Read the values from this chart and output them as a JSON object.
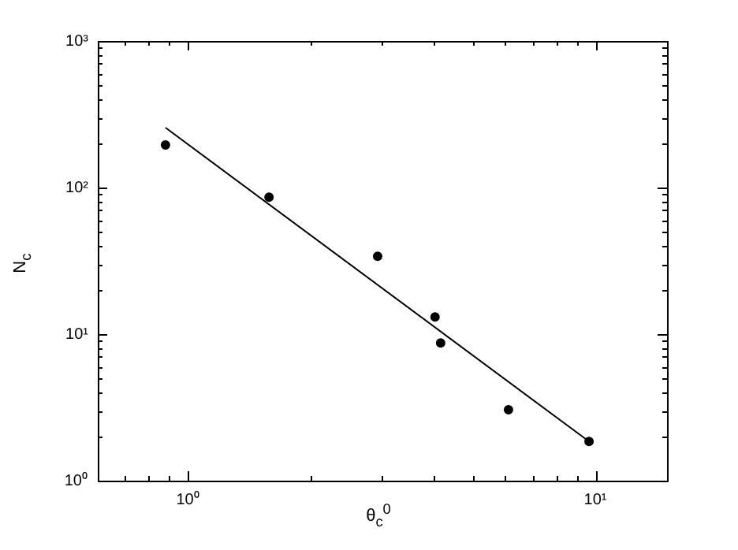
{
  "chart_data": {
    "type": "scatter",
    "xlabel": "θ$_{c}$$^{0}$",
    "ylabel": "N$_{c}$",
    "log": "xy",
    "grid": false,
    "xlim": [
      0.6,
      15
    ],
    "ylim": [
      1,
      1000
    ],
    "xticks": [
      {
        "value": 0.6,
        "label": null
      },
      {
        "value": 0.7,
        "label": null
      },
      {
        "value": 0.8,
        "label": null
      },
      {
        "value": 0.9,
        "label": null
      },
      {
        "value": 1,
        "label": "10⁰"
      },
      {
        "value": 2,
        "label": null
      },
      {
        "value": 3,
        "label": null
      },
      {
        "value": 4,
        "label": null
      },
      {
        "value": 5,
        "label": null
      },
      {
        "value": 6,
        "label": null
      },
      {
        "value": 7,
        "label": null
      },
      {
        "value": 8,
        "label": null
      },
      {
        "value": 9,
        "label": null
      },
      {
        "value": 10,
        "label": "10¹"
      }
    ],
    "yticks": [
      {
        "value": 1,
        "label": "10⁰"
      },
      {
        "value": 2,
        "label": null
      },
      {
        "value": 3,
        "label": null
      },
      {
        "value": 4,
        "label": null
      },
      {
        "value": 5,
        "label": null
      },
      {
        "value": 6,
        "label": null
      },
      {
        "value": 7,
        "label": null
      },
      {
        "value": 8,
        "label": null
      },
      {
        "value": 9,
        "label": null
      },
      {
        "value": 10,
        "label": "10¹"
      },
      {
        "value": 20,
        "label": null
      },
      {
        "value": 30,
        "label": null
      },
      {
        "value": 40,
        "label": null
      },
      {
        "value": 50,
        "label": null
      },
      {
        "value": 60,
        "label": null
      },
      {
        "value": 70,
        "label": null
      },
      {
        "value": 80,
        "label": null
      },
      {
        "value": 90,
        "label": null
      },
      {
        "value": 100,
        "label": "10²"
      },
      {
        "value": 200,
        "label": null
      },
      {
        "value": 300,
        "label": null
      },
      {
        "value": 400,
        "label": null
      },
      {
        "value": 500,
        "label": null
      },
      {
        "value": 600,
        "label": null
      },
      {
        "value": 700,
        "label": null
      },
      {
        "value": 800,
        "label": null
      },
      {
        "value": 900,
        "label": null
      },
      {
        "value": 1000,
        "label": "10³"
      }
    ],
    "series": [
      {
        "marker": "circle",
        "color": "#000000",
        "x": [
          0.88,
          1.58,
          2.92,
          4.04,
          4.17,
          6.12,
          9.65
        ],
        "values": [
          195,
          86,
          34,
          13.1,
          8.7,
          3.05,
          1.85
        ]
      },
      {
        "type": "line",
        "marker": "none",
        "color": "#000000",
        "x": [
          0.88,
          9.65
        ],
        "values": [
          256,
          1.85
        ]
      }
    ]
  }
}
